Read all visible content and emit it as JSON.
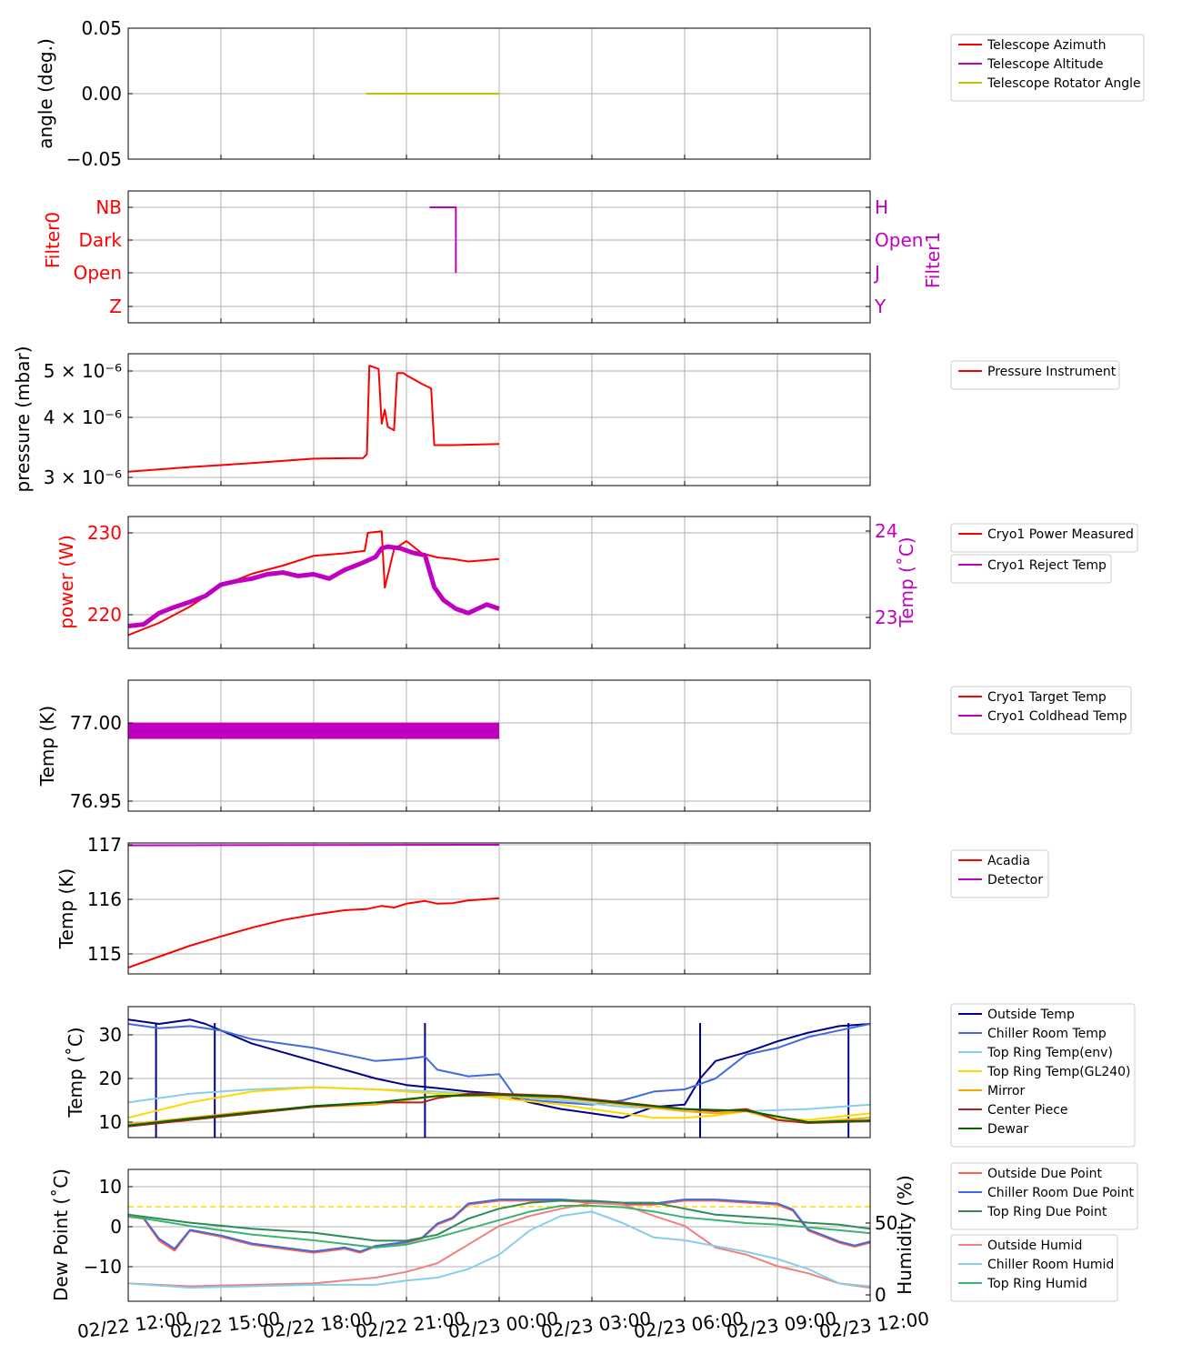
{
  "x_ticks": [
    "02/22 12:00",
    "02/22 15:00",
    "02/22 18:00",
    "02/22 21:00",
    "02/23 00:00",
    "02/23 03:00",
    "02/23 06:00",
    "02/23 09:00",
    "02/23 12:00"
  ],
  "chart_data": [
    {
      "type": "line",
      "ylabel": "angle (deg.)",
      "ylim": [
        -0.05,
        0.05
      ],
      "yticks": [
        "0.05",
        "0.00",
        "−0.05"
      ],
      "grid": true,
      "legend": "right",
      "series": [
        {
          "name": "Telescope Azimuth",
          "color": "#ff0000",
          "x": [],
          "y": []
        },
        {
          "name": "Telescope Altitude",
          "color": "#c000c0",
          "x": [],
          "y": []
        },
        {
          "name": "Telescope Rotator Angle",
          "color": "#c0c000",
          "x": [
            7.7,
            12.0
          ],
          "y": [
            0.0,
            0.0
          ]
        }
      ]
    },
    {
      "type": "line",
      "ylabel": "Filter0",
      "ylabel_right": "Filter1",
      "yticks": [
        "NB",
        "Dark",
        "Open",
        "Z"
      ],
      "yticks_right": [
        "H",
        "Open",
        "J",
        "Y"
      ],
      "grid": true,
      "series": [
        {
          "name": "Filter1",
          "color": "#c000c0",
          "x": [
            9.75,
            10.6,
            10.6,
            10.6
          ],
          "y": [
            "H",
            "H",
            "Open",
            "J"
          ]
        }
      ]
    },
    {
      "type": "line",
      "ylabel": "pressure (mbar)",
      "yscale": "log",
      "yticks": [
        "5 × 10⁻⁶",
        "4 × 10⁻⁶",
        "3 × 10⁻⁶"
      ],
      "grid": true,
      "legend": "right",
      "series": [
        {
          "name": "Pressure Instrument",
          "color": "#ff0000",
          "x": [
            0,
            2,
            4,
            6,
            7.6,
            7.72,
            7.8,
            8.1,
            8.2,
            8.3,
            8.4,
            8.6,
            8.7,
            8.9,
            9.0,
            9.5,
            9.8,
            9.9,
            10.5,
            12.0
          ],
          "y": [
            3.08,
            3.15,
            3.21,
            3.28,
            3.29,
            3.35,
            5.13,
            5.05,
            3.88,
            4.15,
            3.82,
            3.76,
            4.95,
            4.95,
            4.9,
            4.7,
            4.6,
            3.5,
            3.5,
            3.52
          ]
        }
      ]
    },
    {
      "type": "line",
      "ylabel": "power (W)",
      "ylabel_right": "Temp (˚C)",
      "yticks": [
        "230",
        "220"
      ],
      "yticks_right": [
        "24",
        "23"
      ],
      "grid": true,
      "legend": "right",
      "series": [
        {
          "name": "Cryo1 Power Measured",
          "color": "#ff0000",
          "axis": "left",
          "x": [
            0,
            1,
            2,
            3,
            4,
            5,
            6,
            7,
            7.65,
            7.75,
            8.2,
            8.3,
            8.6,
            9.0,
            9.5,
            10.0,
            10.5,
            11.0,
            12.0
          ],
          "y": [
            217.5,
            219.0,
            221.0,
            223.5,
            225.0,
            226.0,
            227.2,
            227.5,
            227.8,
            230.0,
            230.2,
            223.3,
            228.0,
            229.0,
            227.5,
            227.0,
            226.8,
            226.5,
            226.8
          ]
        },
        {
          "name": "Cryo1 Reject Temp",
          "color": "#c000c0",
          "axis": "right",
          "x": [
            0,
            0.5,
            1,
            1.5,
            2,
            2.5,
            3,
            3.5,
            4,
            4.5,
            5,
            5.5,
            6,
            6.5,
            7,
            7.5,
            8.0,
            8.2,
            8.4,
            8.8,
            9.2,
            9.6,
            9.9,
            10.2,
            10.6,
            11.0,
            11.3,
            11.6,
            12.0
          ],
          "y": [
            22.9,
            22.92,
            23.05,
            23.12,
            23.18,
            23.25,
            23.38,
            23.42,
            23.45,
            23.5,
            23.52,
            23.48,
            23.5,
            23.45,
            23.55,
            23.62,
            23.7,
            23.8,
            23.82,
            23.8,
            23.75,
            23.72,
            23.35,
            23.2,
            23.1,
            23.05,
            23.1,
            23.15,
            23.1
          ]
        }
      ]
    },
    {
      "type": "line",
      "ylabel": "Temp (K)",
      "yticks": [
        "77.00",
        "76.95"
      ],
      "grid": true,
      "legend": "right",
      "series": [
        {
          "name": "Cryo1 Target Temp",
          "color": "#ff0000",
          "x": [],
          "y": []
        },
        {
          "name": "Cryo1 Coldhead Temp",
          "color": "#c000c0",
          "x": [
            0,
            12.0
          ],
          "y": [
            76.995,
            76.995
          ]
        }
      ]
    },
    {
      "type": "line",
      "ylabel": "Temp (K)",
      "yticks": [
        "117",
        "116",
        "115"
      ],
      "grid": true,
      "legend": "right",
      "series": [
        {
          "name": "Acadia",
          "color": "#ff0000",
          "x": [
            0,
            1,
            2,
            3,
            4,
            5,
            6,
            7,
            7.7,
            8.2,
            8.6,
            9.0,
            9.6,
            10.0,
            10.5,
            11.0,
            11.5,
            12.0
          ],
          "y": [
            114.75,
            114.95,
            115.15,
            115.32,
            115.48,
            115.62,
            115.72,
            115.8,
            115.82,
            115.88,
            115.85,
            115.92,
            115.97,
            115.92,
            115.93,
            115.98,
            116.0,
            116.02
          ]
        },
        {
          "name": "Detector",
          "color": "#c000c0",
          "x": [
            0,
            12.0
          ],
          "y": [
            116.99,
            117.0
          ]
        }
      ]
    },
    {
      "type": "line",
      "ylabel": "Temp (˚C)",
      "yticks": [
        "30",
        "20",
        "10"
      ],
      "grid": true,
      "legend": "right",
      "series": [
        {
          "name": "Outside Temp",
          "color": "#00008b",
          "x": [
            0,
            1,
            2,
            2.5,
            3,
            4,
            5,
            6,
            7,
            8,
            9,
            10,
            11,
            12,
            13,
            14,
            15,
            16,
            17,
            18,
            18.5,
            19,
            20,
            21,
            22,
            23,
            24
          ],
          "y": [
            33.5,
            32.5,
            33.5,
            32.5,
            31.0,
            28.0,
            26.0,
            24.0,
            22.0,
            20.0,
            18.5,
            17.8,
            17.0,
            16.5,
            14.5,
            13.0,
            12.0,
            11.0,
            13.5,
            14.0,
            20.0,
            24.0,
            26.0,
            28.5,
            30.5,
            32.0,
            32.5
          ]
        },
        {
          "name": "Chiller Room Temp",
          "color": "#4169e1",
          "x": [
            0,
            1,
            2,
            3,
            4,
            5,
            6,
            7,
            8,
            9,
            9.6,
            10,
            11,
            12,
            12.5,
            13,
            14,
            15,
            16,
            17,
            18,
            19,
            20,
            21,
            22,
            23,
            24
          ],
          "y": [
            32.5,
            31.5,
            32.0,
            31.0,
            29.0,
            28.0,
            27.0,
            25.5,
            24.0,
            24.5,
            25.0,
            22.0,
            20.5,
            21.0,
            16.0,
            15.0,
            14.5,
            14.0,
            15.0,
            17.0,
            17.5,
            20.0,
            25.5,
            27.0,
            29.5,
            31.0,
            32.5
          ]
        },
        {
          "name": "Top Ring Temp(env)",
          "color": "#87ceeb",
          "x": [
            0,
            2,
            4,
            6,
            8,
            10,
            12,
            14,
            16,
            18,
            20,
            22,
            24
          ],
          "y": [
            14.5,
            16.5,
            17.5,
            18.0,
            17.5,
            17.0,
            16.0,
            15.0,
            13.5,
            13.0,
            12.5,
            13.0,
            14.0
          ]
        },
        {
          "name": "Top Ring Temp(GL240)",
          "color": "#ffd700",
          "x": [
            0,
            2,
            4,
            6,
            8,
            10,
            11,
            12,
            14,
            16,
            17,
            18,
            19,
            20,
            21,
            22,
            24
          ],
          "y": [
            11.0,
            14.5,
            17.0,
            18.0,
            17.5,
            16.5,
            16.5,
            15.5,
            14.0,
            12.0,
            11.0,
            11.0,
            11.5,
            12.5,
            11.0,
            10.5,
            12.0
          ]
        },
        {
          "name": "Mirror",
          "color": "#ffa500",
          "x": [
            0,
            2,
            4,
            6,
            8,
            10,
            12,
            14,
            16,
            18,
            19,
            20,
            21,
            22,
            24
          ],
          "y": [
            9.5,
            11.0,
            12.5,
            13.5,
            14.0,
            16.0,
            16.0,
            15.5,
            14.0,
            12.5,
            12.0,
            12.5,
            10.5,
            10.0,
            11.0
          ]
        },
        {
          "name": "Center Piece",
          "color": "#b22222",
          "x": [
            0,
            2,
            4,
            6,
            8,
            9.5,
            10,
            11,
            12,
            14,
            16,
            18,
            19,
            20,
            21,
            22,
            24
          ],
          "y": [
            9.0,
            10.5,
            12.0,
            13.5,
            14.5,
            14.5,
            15.5,
            16.5,
            16.5,
            16.0,
            14.5,
            13.0,
            12.5,
            13.0,
            10.5,
            9.8,
            10.2
          ]
        },
        {
          "name": "Dewar",
          "color": "#006400",
          "x": [
            0,
            2,
            4,
            6,
            8,
            10,
            12,
            14,
            16,
            18,
            20,
            22,
            24
          ],
          "y": [
            9.2,
            10.8,
            12.2,
            13.7,
            14.5,
            16.0,
            16.3,
            15.8,
            14.3,
            13.0,
            12.6,
            10.0,
            10.4
          ]
        }
      ],
      "dropouts_hours": [
        0.9,
        2.8,
        9.6,
        18.5,
        23.3
      ]
    },
    {
      "type": "line",
      "ylabel": "Dew Point (˚C)",
      "ylabel_right": "Humidity (%)",
      "yticks": [
        "10",
        "0",
        "−10"
      ],
      "yticks_right": [
        "50",
        "0"
      ],
      "grid": true,
      "legend": "right",
      "threshold": {
        "value": 5,
        "color": "#ffd700",
        "style": "dashed"
      },
      "series": [
        {
          "name": "Outside Due Point",
          "color": "#ff6347",
          "axis": "left",
          "x": [
            0,
            0.5,
            1,
            1.5,
            2,
            3,
            4,
            5,
            6,
            7,
            7.5,
            8,
            9,
            9.5,
            10,
            10.5,
            11,
            12,
            13,
            14,
            15,
            16,
            17,
            18,
            19,
            20,
            21,
            21.5,
            22,
            23,
            23.5,
            24
          ],
          "y": [
            2.5,
            2.0,
            -3.5,
            -6.0,
            -1.0,
            -2.5,
            -4.5,
            -5.5,
            -6.5,
            -5.5,
            -6.5,
            -5.0,
            -4.0,
            -3.0,
            0.5,
            2.0,
            5.5,
            6.5,
            6.5,
            6.5,
            6.0,
            5.5,
            5.5,
            6.5,
            6.5,
            6.0,
            5.5,
            4.0,
            -1.0,
            -4.0,
            -5.0,
            -4.0
          ]
        },
        {
          "name": "Chiller Room Due Point",
          "color": "#4169e1",
          "axis": "left",
          "x": [
            0,
            0.5,
            1,
            1.5,
            2,
            3,
            4,
            5,
            6,
            7,
            7.5,
            8,
            9,
            9.5,
            10,
            10.5,
            11,
            12,
            13,
            14,
            15,
            16,
            17,
            18,
            19,
            20,
            21,
            21.5,
            22,
            23,
            23.5,
            24
          ],
          "y": [
            2.8,
            2.2,
            -3.0,
            -5.5,
            -0.8,
            -2.2,
            -4.2,
            -5.2,
            -6.2,
            -5.2,
            -6.2,
            -4.8,
            -3.8,
            -2.8,
            0.8,
            2.3,
            5.8,
            6.8,
            6.8,
            6.8,
            6.3,
            5.8,
            5.8,
            6.8,
            6.8,
            6.3,
            5.8,
            4.3,
            -0.7,
            -3.7,
            -4.7,
            -3.7
          ]
        },
        {
          "name": "Top Ring Due Point",
          "color": "#2e8b57",
          "axis": "left",
          "x": [
            0,
            2,
            4,
            6,
            7,
            8,
            9,
            10,
            11,
            12,
            13,
            14,
            15,
            16,
            17,
            18,
            19,
            20,
            21,
            22,
            23,
            24
          ],
          "y": [
            3.0,
            1.0,
            -0.5,
            -1.5,
            -2.5,
            -3.5,
            -3.5,
            -2.0,
            2.0,
            4.5,
            6.0,
            6.5,
            6.5,
            6.0,
            6.0,
            4.5,
            3.0,
            2.5,
            2.0,
            1.0,
            0.5,
            -0.5
          ]
        },
        {
          "name": "Outside Humid",
          "color": "#f08080",
          "axis": "right",
          "x": [
            0,
            2,
            4,
            6,
            8,
            9,
            10,
            11,
            12,
            13,
            14,
            15,
            16,
            17,
            18,
            19,
            20,
            21,
            22,
            23,
            24
          ],
          "y": [
            8,
            6,
            7,
            8,
            12,
            16,
            22,
            35,
            48,
            55,
            60,
            64,
            63,
            55,
            48,
            33,
            28,
            20,
            15,
            8,
            5
          ]
        },
        {
          "name": "Chiller Room Humid",
          "color": "#87ceeb",
          "axis": "right",
          "x": [
            0,
            2,
            4,
            6,
            8,
            9,
            10,
            11,
            12,
            13,
            14,
            15,
            16,
            17,
            18,
            19,
            20,
            21,
            22,
            23,
            24
          ],
          "y": [
            8,
            5,
            6,
            7,
            7,
            10,
            12,
            18,
            28,
            45,
            55,
            58,
            50,
            40,
            38,
            34,
            30,
            25,
            18,
            8,
            6
          ]
        },
        {
          "name": "Top Ring Humid",
          "color": "#3cb371",
          "axis": "right",
          "x": [
            0,
            2,
            4,
            6,
            8,
            9,
            10,
            11,
            12,
            13,
            14,
            15,
            16,
            17,
            18,
            19,
            20,
            21,
            22,
            23,
            24
          ],
          "y": [
            55,
            48,
            42,
            38,
            33,
            35,
            40,
            46,
            52,
            58,
            62,
            62,
            61,
            58,
            54,
            52,
            50,
            49,
            47,
            45,
            43
          ]
        }
      ]
    }
  ]
}
